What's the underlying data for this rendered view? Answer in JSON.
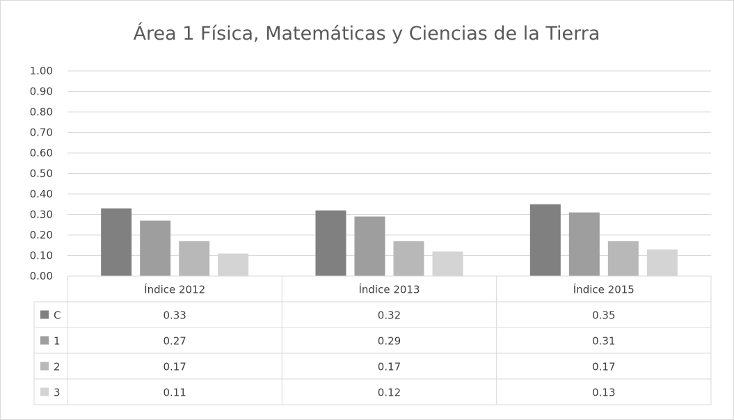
{
  "chart_data": {
    "type": "bar",
    "title": "Área 1 Física, Matemáticas y Ciencias de la Tierra",
    "categories": [
      "Índice 2012",
      "Índice 2013",
      "Índice 2015"
    ],
    "series": [
      {
        "name": "C",
        "values": [
          0.33,
          0.32,
          0.35
        ],
        "color": "#808080",
        "labels": [
          "0.33",
          "0.32",
          "0.35"
        ]
      },
      {
        "name": "1",
        "values": [
          0.27,
          0.29,
          0.31
        ],
        "color": "#9e9e9e",
        "labels": [
          "0.27",
          "0.29",
          "0.31"
        ]
      },
      {
        "name": "2",
        "values": [
          0.17,
          0.17,
          0.17
        ],
        "color": "#b8b8b8",
        "labels": [
          "0.17",
          "0.17",
          "0.17"
        ]
      },
      {
        "name": "3",
        "values": [
          0.11,
          0.12,
          0.13
        ],
        "color": "#d4d4d4",
        "labels": [
          "0.11",
          "0.12",
          "0.13"
        ]
      }
    ],
    "ylim": [
      0,
      1
    ],
    "yticks": [
      "0.00",
      "0.10",
      "0.20",
      "0.30",
      "0.40",
      "0.50",
      "0.60",
      "0.70",
      "0.80",
      "0.90",
      "1.00"
    ],
    "grid": true,
    "legend": "data-table"
  }
}
